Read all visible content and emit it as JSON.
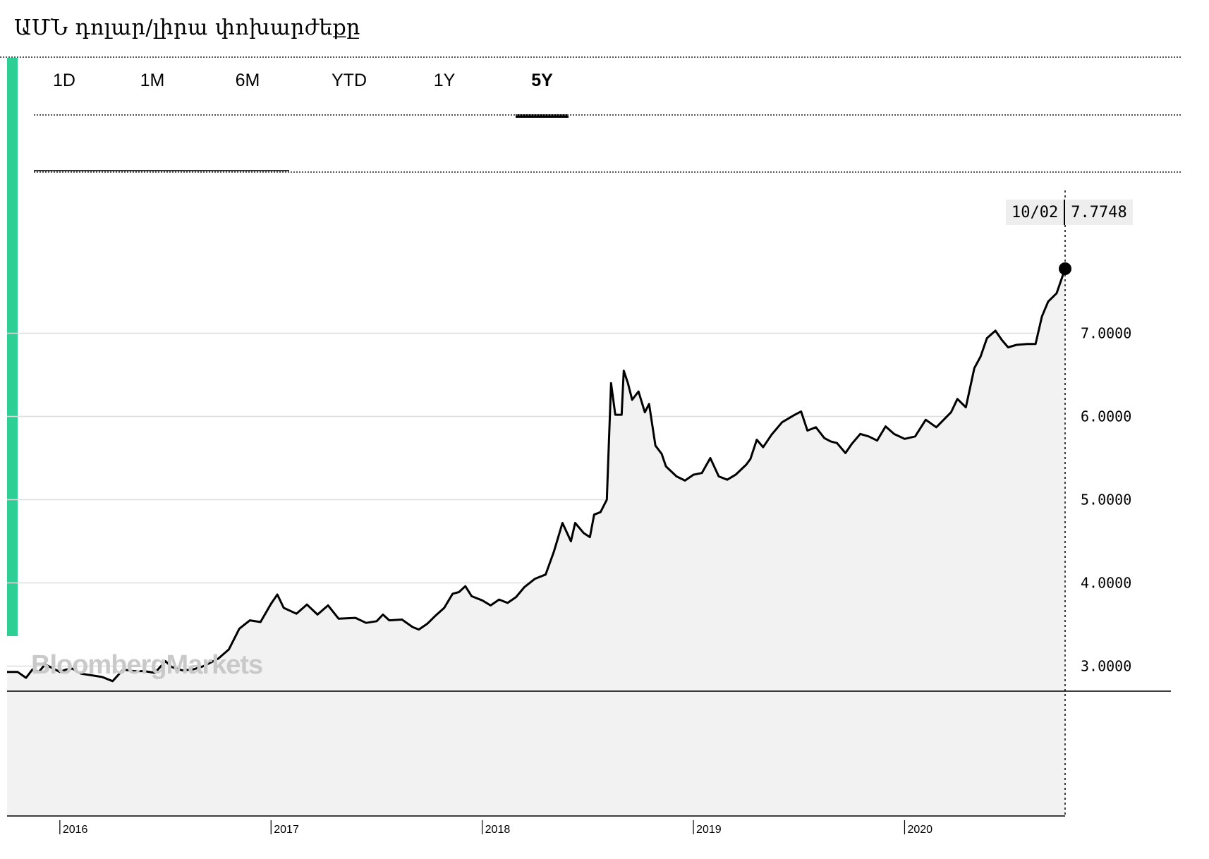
{
  "header": {
    "title": "ԱՄՆ դոլար/լիրա փոխարժեքը"
  },
  "tabs": [
    {
      "label": "1D",
      "active": false
    },
    {
      "label": "1M",
      "active": false
    },
    {
      "label": "6M",
      "active": false
    },
    {
      "label": "YTD",
      "active": false
    },
    {
      "label": "1Y",
      "active": false
    },
    {
      "label": "5Y",
      "active": true
    }
  ],
  "tooltip": {
    "date": "10/02",
    "value": "7.7748"
  },
  "watermark": "BloombergMarkets",
  "colors": {
    "accent": "#2ecf94",
    "line": "#000000",
    "area": "#f2f2f2",
    "grid": "#dddddd"
  },
  "chart_data": {
    "type": "area",
    "title": "",
    "xlabel": "",
    "ylabel": "",
    "x_ticks": [
      "2016",
      "2017",
      "2018",
      "2019",
      "2020"
    ],
    "y_ticks": [
      "3.0000",
      "4.0000",
      "5.0000",
      "6.0000",
      "7.0000"
    ],
    "ylim": [
      1.2,
      8.8
    ],
    "xlim": [
      2015.75,
      2020.76
    ],
    "grid": true,
    "last_point": {
      "x": 2020.76,
      "y": 7.7748
    },
    "series": [
      {
        "values": [
          [
            2015.75,
            2.93
          ],
          [
            2015.8,
            2.93
          ],
          [
            2015.84,
            2.86
          ],
          [
            2015.87,
            2.96
          ],
          [
            2015.9,
            2.93
          ],
          [
            2015.93,
            3.02
          ],
          [
            2015.97,
            2.97
          ],
          [
            2016.0,
            2.93
          ],
          [
            2016.03,
            2.96
          ],
          [
            2016.06,
            2.97
          ],
          [
            2016.1,
            2.91
          ],
          [
            2016.15,
            2.89
          ],
          [
            2016.2,
            2.87
          ],
          [
            2016.25,
            2.82
          ],
          [
            2016.3,
            2.96
          ],
          [
            2016.35,
            2.94
          ],
          [
            2016.4,
            2.94
          ],
          [
            2016.45,
            2.92
          ],
          [
            2016.5,
            3.06
          ],
          [
            2016.53,
            2.99
          ],
          [
            2016.58,
            2.95
          ],
          [
            2016.63,
            2.96
          ],
          [
            2016.68,
            3.0
          ],
          [
            2016.75,
            3.09
          ],
          [
            2016.8,
            3.2
          ],
          [
            2016.85,
            3.45
          ],
          [
            2016.9,
            3.55
          ],
          [
            2016.95,
            3.53
          ],
          [
            2017.0,
            3.75
          ],
          [
            2017.03,
            3.86
          ],
          [
            2017.06,
            3.7
          ],
          [
            2017.12,
            3.63
          ],
          [
            2017.17,
            3.74
          ],
          [
            2017.22,
            3.62
          ],
          [
            2017.27,
            3.73
          ],
          [
            2017.32,
            3.57
          ],
          [
            2017.4,
            3.58
          ],
          [
            2017.45,
            3.52
          ],
          [
            2017.5,
            3.54
          ],
          [
            2017.53,
            3.62
          ],
          [
            2017.56,
            3.55
          ],
          [
            2017.62,
            3.56
          ],
          [
            2017.67,
            3.47
          ],
          [
            2017.7,
            3.44
          ],
          [
            2017.74,
            3.51
          ],
          [
            2017.78,
            3.61
          ],
          [
            2017.82,
            3.7
          ],
          [
            2017.86,
            3.87
          ],
          [
            2017.89,
            3.89
          ],
          [
            2017.92,
            3.96
          ],
          [
            2017.95,
            3.84
          ],
          [
            2018.0,
            3.79
          ],
          [
            2018.04,
            3.73
          ],
          [
            2018.08,
            3.8
          ],
          [
            2018.12,
            3.76
          ],
          [
            2018.16,
            3.83
          ],
          [
            2018.2,
            3.95
          ],
          [
            2018.25,
            4.05
          ],
          [
            2018.3,
            4.1
          ],
          [
            2018.34,
            4.38
          ],
          [
            2018.38,
            4.72
          ],
          [
            2018.42,
            4.5
          ],
          [
            2018.44,
            4.72
          ],
          [
            2018.48,
            4.6
          ],
          [
            2018.51,
            4.55
          ],
          [
            2018.53,
            4.82
          ],
          [
            2018.56,
            4.85
          ],
          [
            2018.59,
            5.0
          ],
          [
            2018.61,
            6.4
          ],
          [
            2018.63,
            6.02
          ],
          [
            2018.66,
            6.02
          ],
          [
            2018.67,
            6.55
          ],
          [
            2018.69,
            6.4
          ],
          [
            2018.71,
            6.2
          ],
          [
            2018.74,
            6.3
          ],
          [
            2018.77,
            6.05
          ],
          [
            2018.79,
            6.15
          ],
          [
            2018.82,
            5.65
          ],
          [
            2018.85,
            5.55
          ],
          [
            2018.87,
            5.4
          ],
          [
            2018.92,
            5.28
          ],
          [
            2018.96,
            5.23
          ],
          [
            2019.0,
            5.3
          ],
          [
            2019.04,
            5.32
          ],
          [
            2019.08,
            5.5
          ],
          [
            2019.12,
            5.28
          ],
          [
            2019.16,
            5.24
          ],
          [
            2019.2,
            5.3
          ],
          [
            2019.25,
            5.42
          ],
          [
            2019.27,
            5.49
          ],
          [
            2019.3,
            5.72
          ],
          [
            2019.33,
            5.63
          ],
          [
            2019.37,
            5.78
          ],
          [
            2019.42,
            5.93
          ],
          [
            2019.48,
            6.02
          ],
          [
            2019.51,
            6.06
          ],
          [
            2019.54,
            5.83
          ],
          [
            2019.58,
            5.87
          ],
          [
            2019.62,
            5.74
          ],
          [
            2019.65,
            5.7
          ],
          [
            2019.68,
            5.68
          ],
          [
            2019.72,
            5.56
          ],
          [
            2019.75,
            5.67
          ],
          [
            2019.79,
            5.79
          ],
          [
            2019.83,
            5.76
          ],
          [
            2019.87,
            5.71
          ],
          [
            2019.91,
            5.88
          ],
          [
            2019.95,
            5.79
          ],
          [
            2020.0,
            5.73
          ],
          [
            2020.05,
            5.76
          ],
          [
            2020.1,
            5.96
          ],
          [
            2020.15,
            5.87
          ],
          [
            2020.22,
            6.05
          ],
          [
            2020.25,
            6.21
          ],
          [
            2020.29,
            6.11
          ],
          [
            2020.33,
            6.58
          ],
          [
            2020.36,
            6.72
          ],
          [
            2020.39,
            6.94
          ],
          [
            2020.43,
            7.03
          ],
          [
            2020.46,
            6.92
          ],
          [
            2020.49,
            6.83
          ],
          [
            2020.53,
            6.86
          ],
          [
            2020.58,
            6.87
          ],
          [
            2020.62,
            6.87
          ],
          [
            2020.65,
            7.2
          ],
          [
            2020.68,
            7.38
          ],
          [
            2020.72,
            7.48
          ],
          [
            2020.76,
            7.7748
          ]
        ]
      }
    ]
  }
}
